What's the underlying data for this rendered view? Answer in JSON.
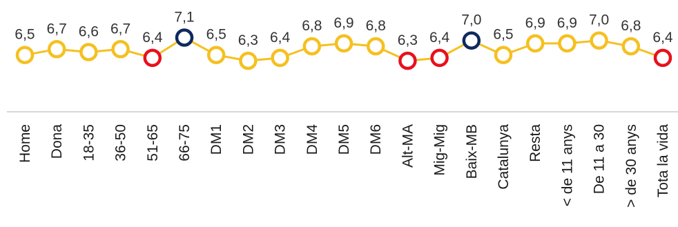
{
  "chart_data": {
    "type": "line",
    "categories": [
      "Home",
      "Dona",
      "18-35",
      "36-50",
      "51-65",
      "66-75",
      "DM1",
      "DM2",
      "DM3",
      "DM4",
      "DM5",
      "DM6",
      "Alt-MA",
      "Mig-Mig",
      "Baix-MB",
      "Catalunya",
      "Resta",
      "< de 11 anys",
      "De 11 a 30",
      "> de 30 anys",
      "Tota la vida"
    ],
    "values": [
      6.5,
      6.7,
      6.6,
      6.7,
      6.4,
      7.1,
      6.5,
      6.3,
      6.4,
      6.8,
      6.9,
      6.8,
      6.3,
      6.4,
      7.0,
      6.5,
      6.9,
      6.9,
      7.0,
      6.8,
      6.4
    ],
    "value_labels": [
      "6,5",
      "6,7",
      "6,6",
      "6,7",
      "6,4",
      "7,1",
      "6,5",
      "6,3",
      "6,4",
      "6,8",
      "6,9",
      "6,8",
      "6,3",
      "6,4",
      "7,0",
      "6,5",
      "6,9",
      "6,9",
      "7,0",
      "6,8",
      "6,4"
    ],
    "marker_status": [
      "normal",
      "normal",
      "normal",
      "normal",
      "low",
      "high",
      "normal",
      "normal",
      "normal",
      "normal",
      "normal",
      "normal",
      "low",
      "low",
      "high",
      "normal",
      "normal",
      "normal",
      "normal",
      "normal",
      "low"
    ],
    "colors": {
      "line": "#f5c020",
      "normal": "#f5c020",
      "low": "#e8101c",
      "high": "#0e2a5e",
      "axis": "#bfbfbf"
    },
    "title": "",
    "xlabel": "",
    "ylabel": "",
    "ylim": [
      6.0,
      7.3
    ],
    "grid": false,
    "legend": "none"
  }
}
